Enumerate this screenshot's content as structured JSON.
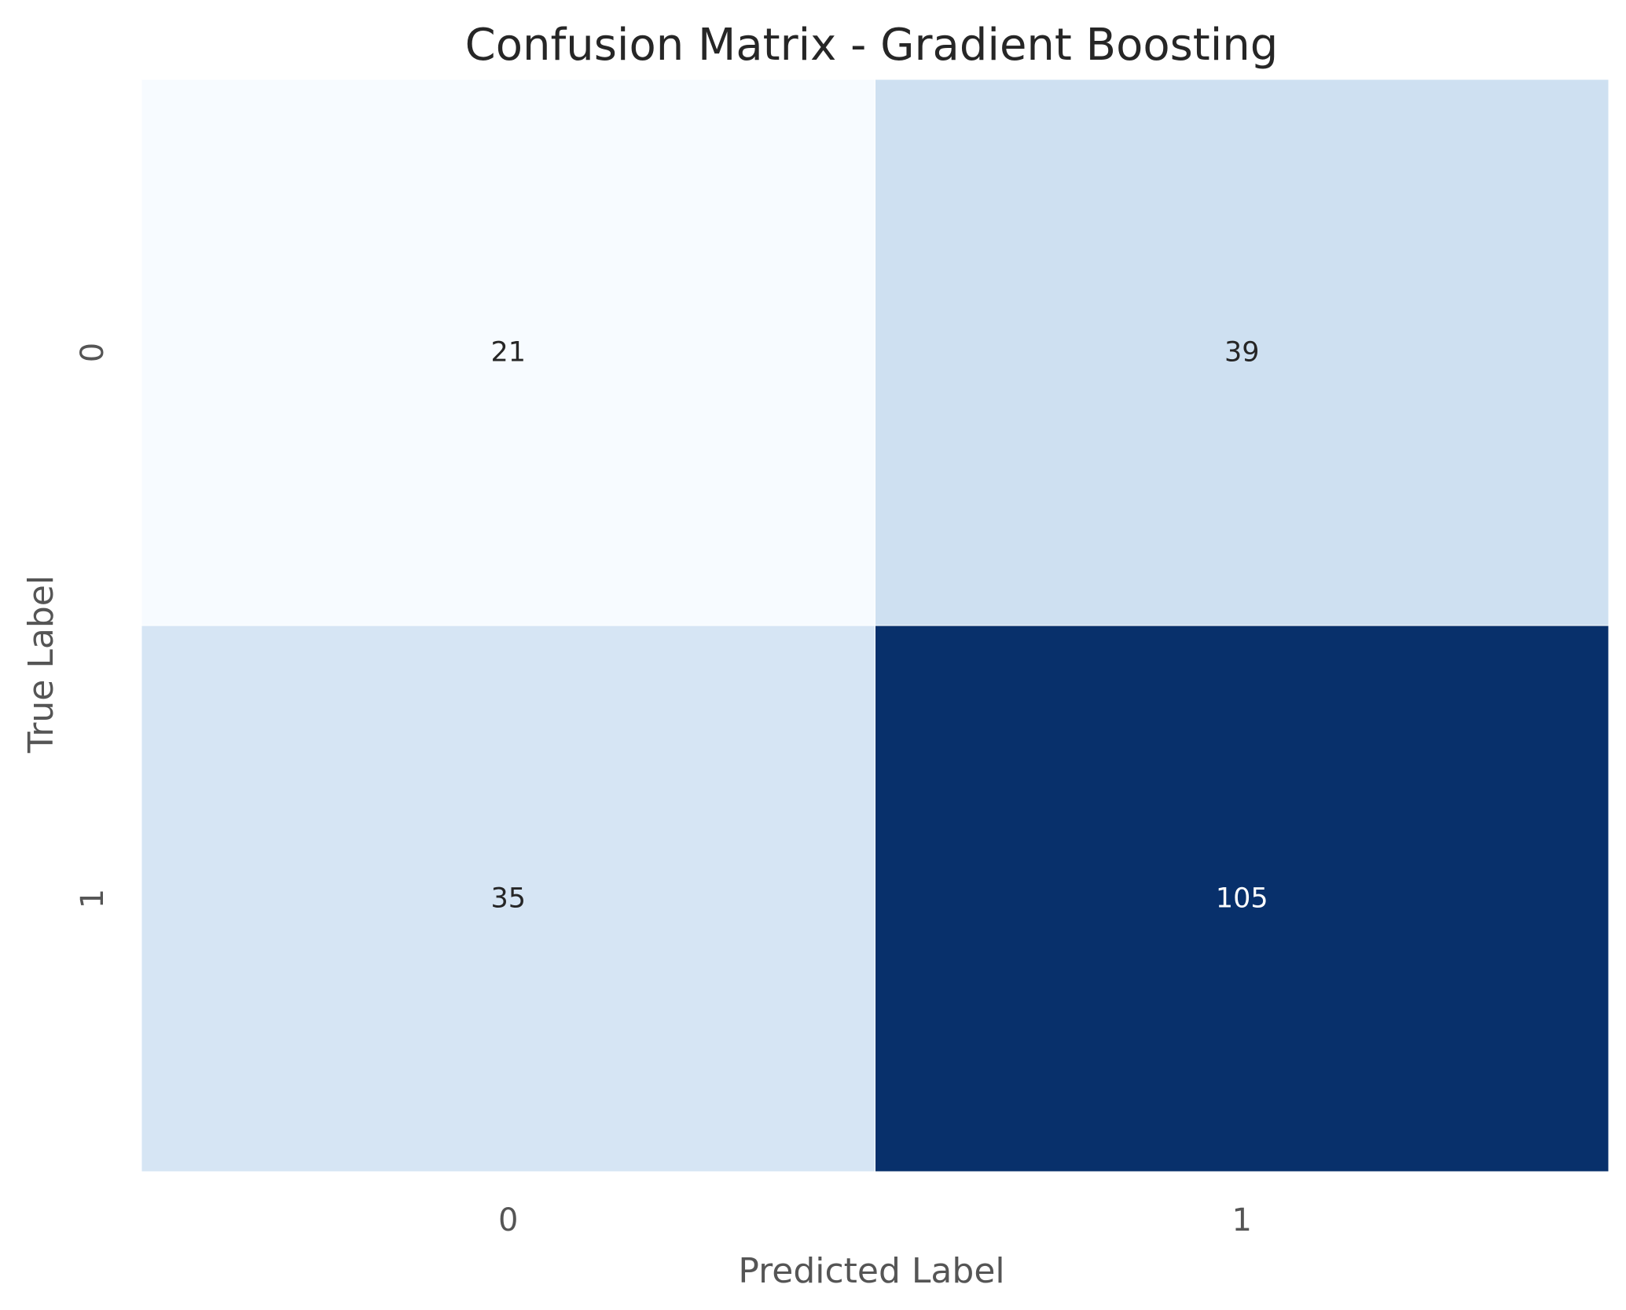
{
  "chart_data": {
    "type": "heatmap",
    "title": "Confusion Matrix - Gradient Boosting",
    "xlabel": "Predicted Label",
    "ylabel": "True Label",
    "x_categories": [
      "0",
      "1"
    ],
    "y_categories": [
      "0",
      "1"
    ],
    "values": [
      [
        21,
        39
      ],
      [
        35,
        105
      ]
    ],
    "colormap": "Blues",
    "colorbar": false,
    "grid": false,
    "cell_colors": [
      [
        "#f7fbff",
        "#cee0f1"
      ],
      [
        "#d6e5f4",
        "#08306b"
      ]
    ],
    "cell_text_colors": [
      [
        "#262626",
        "#262626"
      ],
      [
        "#262626",
        "#ffffff"
      ]
    ]
  }
}
